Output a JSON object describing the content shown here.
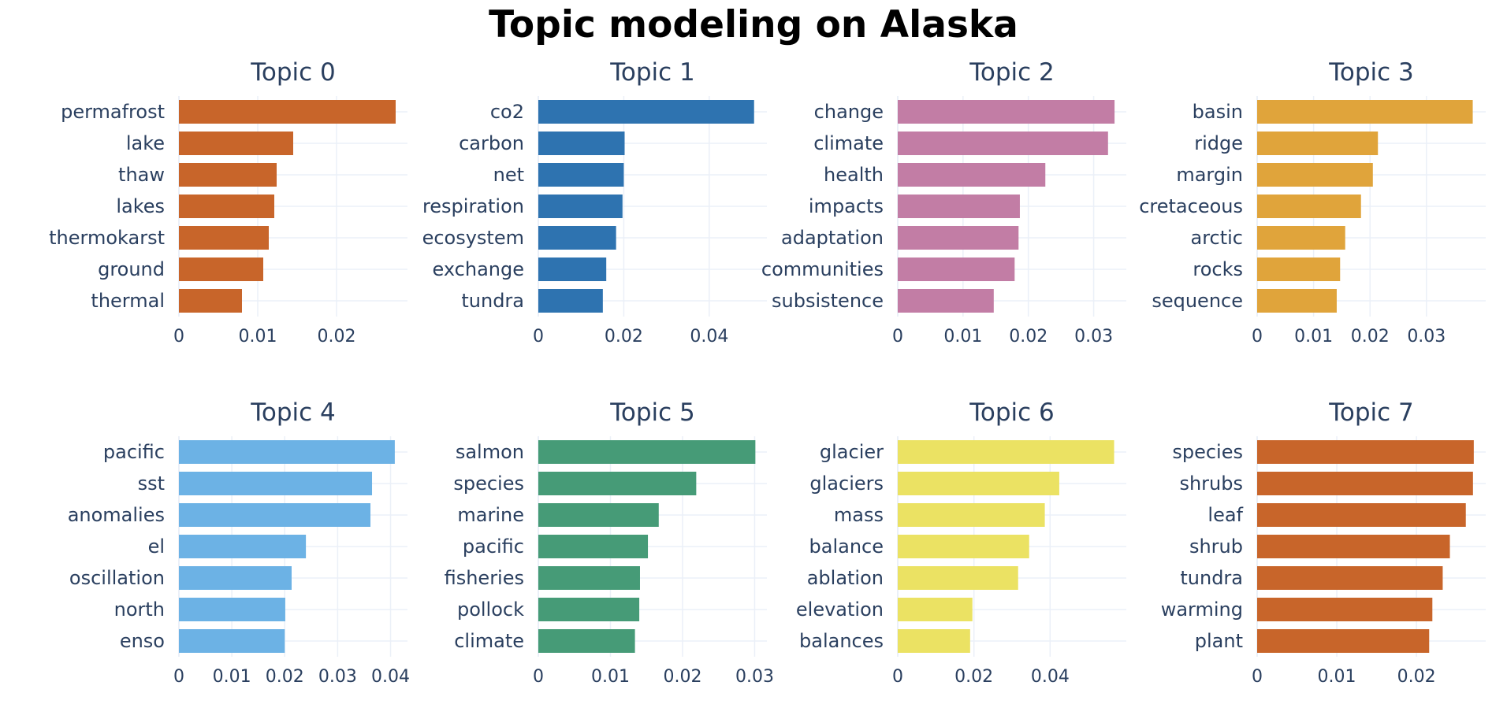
{
  "title": "Topic modeling on Alaska",
  "chart_data": [
    {
      "type": "bar",
      "orientation": "horizontal",
      "title": "Topic 0",
      "color": "#c8652a",
      "categories": [
        "permafrost",
        "lake",
        "thaw",
        "lakes",
        "thermokarst",
        "ground",
        "thermal"
      ],
      "values": [
        0.0275,
        0.0145,
        0.0124,
        0.0121,
        0.0114,
        0.0107,
        0.008
      ],
      "xlim": [
        0,
        0.029
      ],
      "xticks": [
        0,
        0.01,
        0.02
      ],
      "xtick_labels": [
        "0",
        "0.01",
        "0.02"
      ]
    },
    {
      "type": "bar",
      "orientation": "horizontal",
      "title": "Topic 1",
      "color": "#2e73b0",
      "categories": [
        "co2",
        "carbon",
        "net",
        "respiration",
        "ecosystem",
        "exchange",
        "tundra"
      ],
      "values": [
        0.0505,
        0.0202,
        0.02,
        0.0197,
        0.0182,
        0.0159,
        0.0151
      ],
      "xlim": [
        0,
        0.0535
      ],
      "xticks": [
        0,
        0.02,
        0.04
      ],
      "xtick_labels": [
        "0",
        "0.02",
        "0.04"
      ]
    },
    {
      "type": "bar",
      "orientation": "horizontal",
      "title": "Topic 2",
      "color": "#c27da5",
      "categories": [
        "change",
        "climate",
        "health",
        "impacts",
        "adaptation",
        "communities",
        "subsistence"
      ],
      "values": [
        0.0332,
        0.0322,
        0.0226,
        0.0187,
        0.0185,
        0.0179,
        0.0147
      ],
      "xlim": [
        0,
        0.035
      ],
      "xticks": [
        0,
        0.01,
        0.02,
        0.03
      ],
      "xtick_labels": [
        "0",
        "0.01",
        "0.02",
        "0.03"
      ]
    },
    {
      "type": "bar",
      "orientation": "horizontal",
      "title": "Topic 3",
      "color": "#e0a43b",
      "categories": [
        "basin",
        "ridge",
        "margin",
        "cretaceous",
        "arctic",
        "rocks",
        "sequence"
      ],
      "values": [
        0.0382,
        0.0214,
        0.0205,
        0.0184,
        0.0156,
        0.0147,
        0.0141
      ],
      "xlim": [
        0,
        0.0405
      ],
      "xticks": [
        0,
        0.01,
        0.02,
        0.03
      ],
      "xtick_labels": [
        "0",
        "0.01",
        "0.02",
        "0.03"
      ]
    },
    {
      "type": "bar",
      "orientation": "horizontal",
      "title": "Topic 4",
      "color": "#6cb2e5",
      "categories": [
        "pacific",
        "sst",
        "anomalies",
        "el",
        "oscillation",
        "north",
        "enso"
      ],
      "values": [
        0.0408,
        0.0365,
        0.0362,
        0.024,
        0.0213,
        0.0201,
        0.02
      ],
      "xlim": [
        0,
        0.0432
      ],
      "xticks": [
        0,
        0.01,
        0.02,
        0.03,
        0.04
      ],
      "xtick_labels": [
        "0",
        "0.01",
        "0.02",
        "0.03",
        "0.04"
      ]
    },
    {
      "type": "bar",
      "orientation": "horizontal",
      "title": "Topic 5",
      "color": "#469b77",
      "categories": [
        "salmon",
        "species",
        "marine",
        "pacific",
        "fisheries",
        "pollock",
        "climate"
      ],
      "values": [
        0.0301,
        0.0219,
        0.0167,
        0.0152,
        0.0141,
        0.014,
        0.0134
      ],
      "xlim": [
        0,
        0.0317
      ],
      "xticks": [
        0,
        0.01,
        0.02,
        0.03
      ],
      "xtick_labels": [
        "0",
        "0.01",
        "0.02",
        "0.03"
      ]
    },
    {
      "type": "bar",
      "orientation": "horizontal",
      "title": "Topic 6",
      "color": "#ebe263",
      "categories": [
        "glacier",
        "glaciers",
        "mass",
        "balance",
        "ablation",
        "elevation",
        "balances"
      ],
      "values": [
        0.0568,
        0.0424,
        0.0386,
        0.0345,
        0.0316,
        0.0196,
        0.019
      ],
      "xlim": [
        0,
        0.06
      ],
      "xticks": [
        0,
        0.02,
        0.04
      ],
      "xtick_labels": [
        "0",
        "0.02",
        "0.04"
      ]
    },
    {
      "type": "bar",
      "orientation": "horizontal",
      "title": "Topic 7",
      "color": "#c8652a",
      "categories": [
        "species",
        "shrubs",
        "leaf",
        "shrub",
        "tundra",
        "warming",
        "plant"
      ],
      "values": [
        0.0272,
        0.0271,
        0.0262,
        0.0242,
        0.0233,
        0.022,
        0.0216
      ],
      "xlim": [
        0,
        0.0287
      ],
      "xticks": [
        0,
        0.01,
        0.02
      ],
      "xtick_labels": [
        "0",
        "0.01",
        "0.02"
      ]
    }
  ]
}
